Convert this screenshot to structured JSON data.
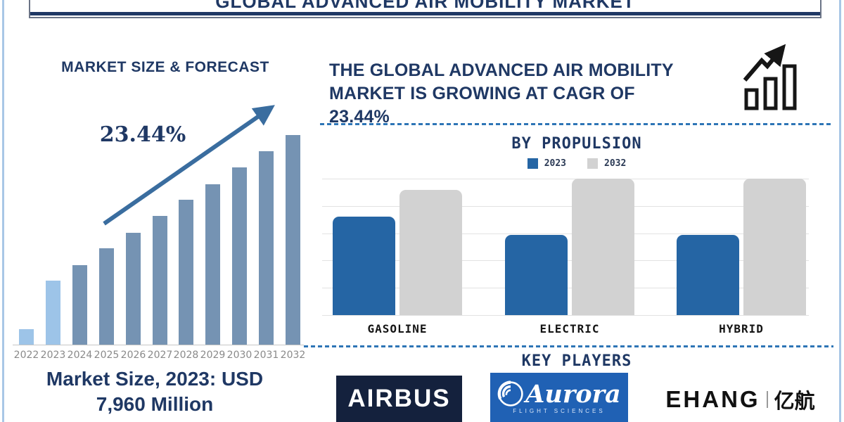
{
  "header": {
    "title": "GLOBAL ADVANCED AIR MOBILITY MARKET"
  },
  "left_chart": {
    "title": "MARKET SIZE & FORECAST",
    "cagr_label": "23.44%",
    "note_line1": "Market Size, 2023: USD",
    "note_line2": "7,960 Million"
  },
  "right_panel": {
    "heading_lines": [
      "THE GLOBAL ADVANCED AIR MOBILITY",
      "MARKET IS GROWING AT CAGR OF",
      "23.44%"
    ]
  },
  "propulsion": {
    "title": "BY PROPULSION"
  },
  "key_players": {
    "title": "KEY PLAYERS",
    "logos": [
      {
        "name": "Airbus",
        "text": "AIRBUS"
      },
      {
        "name": "Aurora Flight Sciences",
        "text": "Aurora",
        "subtext": "FLIGHT SCIENCES"
      },
      {
        "name": "EHang",
        "text": "EHANG",
        "text_cn": "亿航"
      }
    ]
  },
  "chart_data": [
    {
      "id": "market-size-forecast",
      "type": "bar",
      "title": "MARKET SIZE & FORECAST",
      "categories": [
        "2022",
        "2023",
        "2024",
        "2025",
        "2026",
        "2027",
        "2028",
        "2029",
        "2030",
        "2031",
        "2032"
      ],
      "values_relative_pct": [
        7.4,
        30.5,
        37.9,
        46.0,
        53.4,
        61.4,
        69.1,
        76.5,
        84.6,
        92.3,
        100
      ],
      "highlight_categories": [
        "2022",
        "2023"
      ],
      "known_values": {
        "2023": "USD 7,960 Million"
      },
      "cagr_pct": 23.44,
      "xlabel": "",
      "ylabel": "",
      "grid": false,
      "legend_position": "none"
    },
    {
      "id": "by-propulsion",
      "type": "grouped_bar",
      "title": "BY PROPULSION",
      "categories": [
        "GASOLINE",
        "ELECTRIC",
        "HYBRID"
      ],
      "series": [
        {
          "name": "2023",
          "color": "#2565a4",
          "values_relative_pct": [
            72,
            59,
            59
          ]
        },
        {
          "name": "2032",
          "color": "#d2d2d2",
          "values_relative_pct": [
            92,
            100,
            100
          ]
        }
      ],
      "xlabel": "",
      "ylabel": "",
      "grid": true,
      "legend_position": "top"
    }
  ],
  "colors": {
    "navy": "#1f3864",
    "steel_bar": "#7593b3",
    "highlight_bar": "#9dc4e8",
    "arrow": "#3a6d9f",
    "blue_2023": "#2565a4",
    "gray_2032": "#d2d2d2",
    "dashed_divider": "#2e75b6",
    "frame": "#a9c7e6",
    "airbus_bg": "#14213d",
    "aurora_bg": "#2061b4",
    "icon_black": "#161616"
  }
}
